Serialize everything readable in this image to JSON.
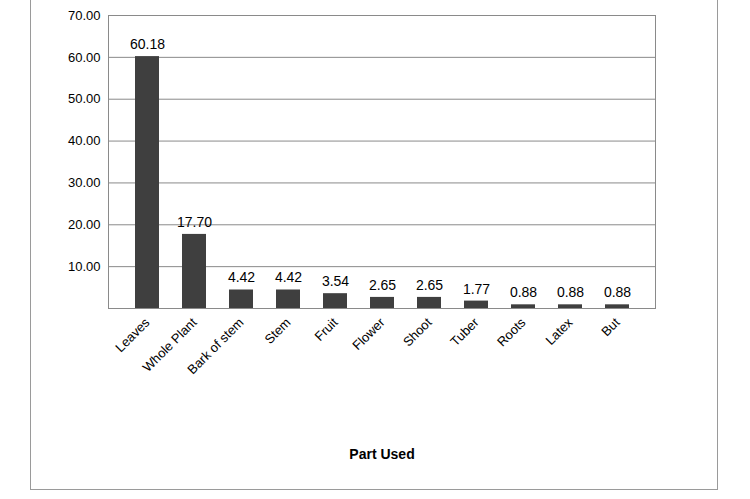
{
  "chart_data": {
    "type": "bar",
    "x_label": "Part Used",
    "categories": [
      "Leaves",
      "Whole Plant",
      "Bark of stem",
      "Stem",
      "Fruit",
      "Flower",
      "Shoot",
      "Tuber",
      "Roots",
      "Latex",
      "But"
    ],
    "values": [
      60.18,
      17.7,
      4.42,
      4.42,
      3.54,
      2.65,
      2.65,
      1.77,
      0.88,
      0.88,
      0.88
    ],
    "value_labels": [
      "60.18",
      "17.70",
      "4.42",
      "4.42",
      "3.54",
      "2.65",
      "2.65",
      "1.77",
      "0.88",
      "0.88",
      "0.88"
    ],
    "data_labels": true,
    "color": "#3f3f3f",
    "ylim": [
      0,
      70
    ],
    "yticks": [
      {
        "value": 10,
        "label": "10.00"
      },
      {
        "value": 20,
        "label": "20.00"
      },
      {
        "value": 30,
        "label": "30.00"
      },
      {
        "value": 40,
        "label": "40.00"
      },
      {
        "value": 50,
        "label": "50.00"
      },
      {
        "value": 60,
        "label": "60.00"
      },
      {
        "value": 70,
        "label": "70.00"
      }
    ],
    "grid": true
  }
}
